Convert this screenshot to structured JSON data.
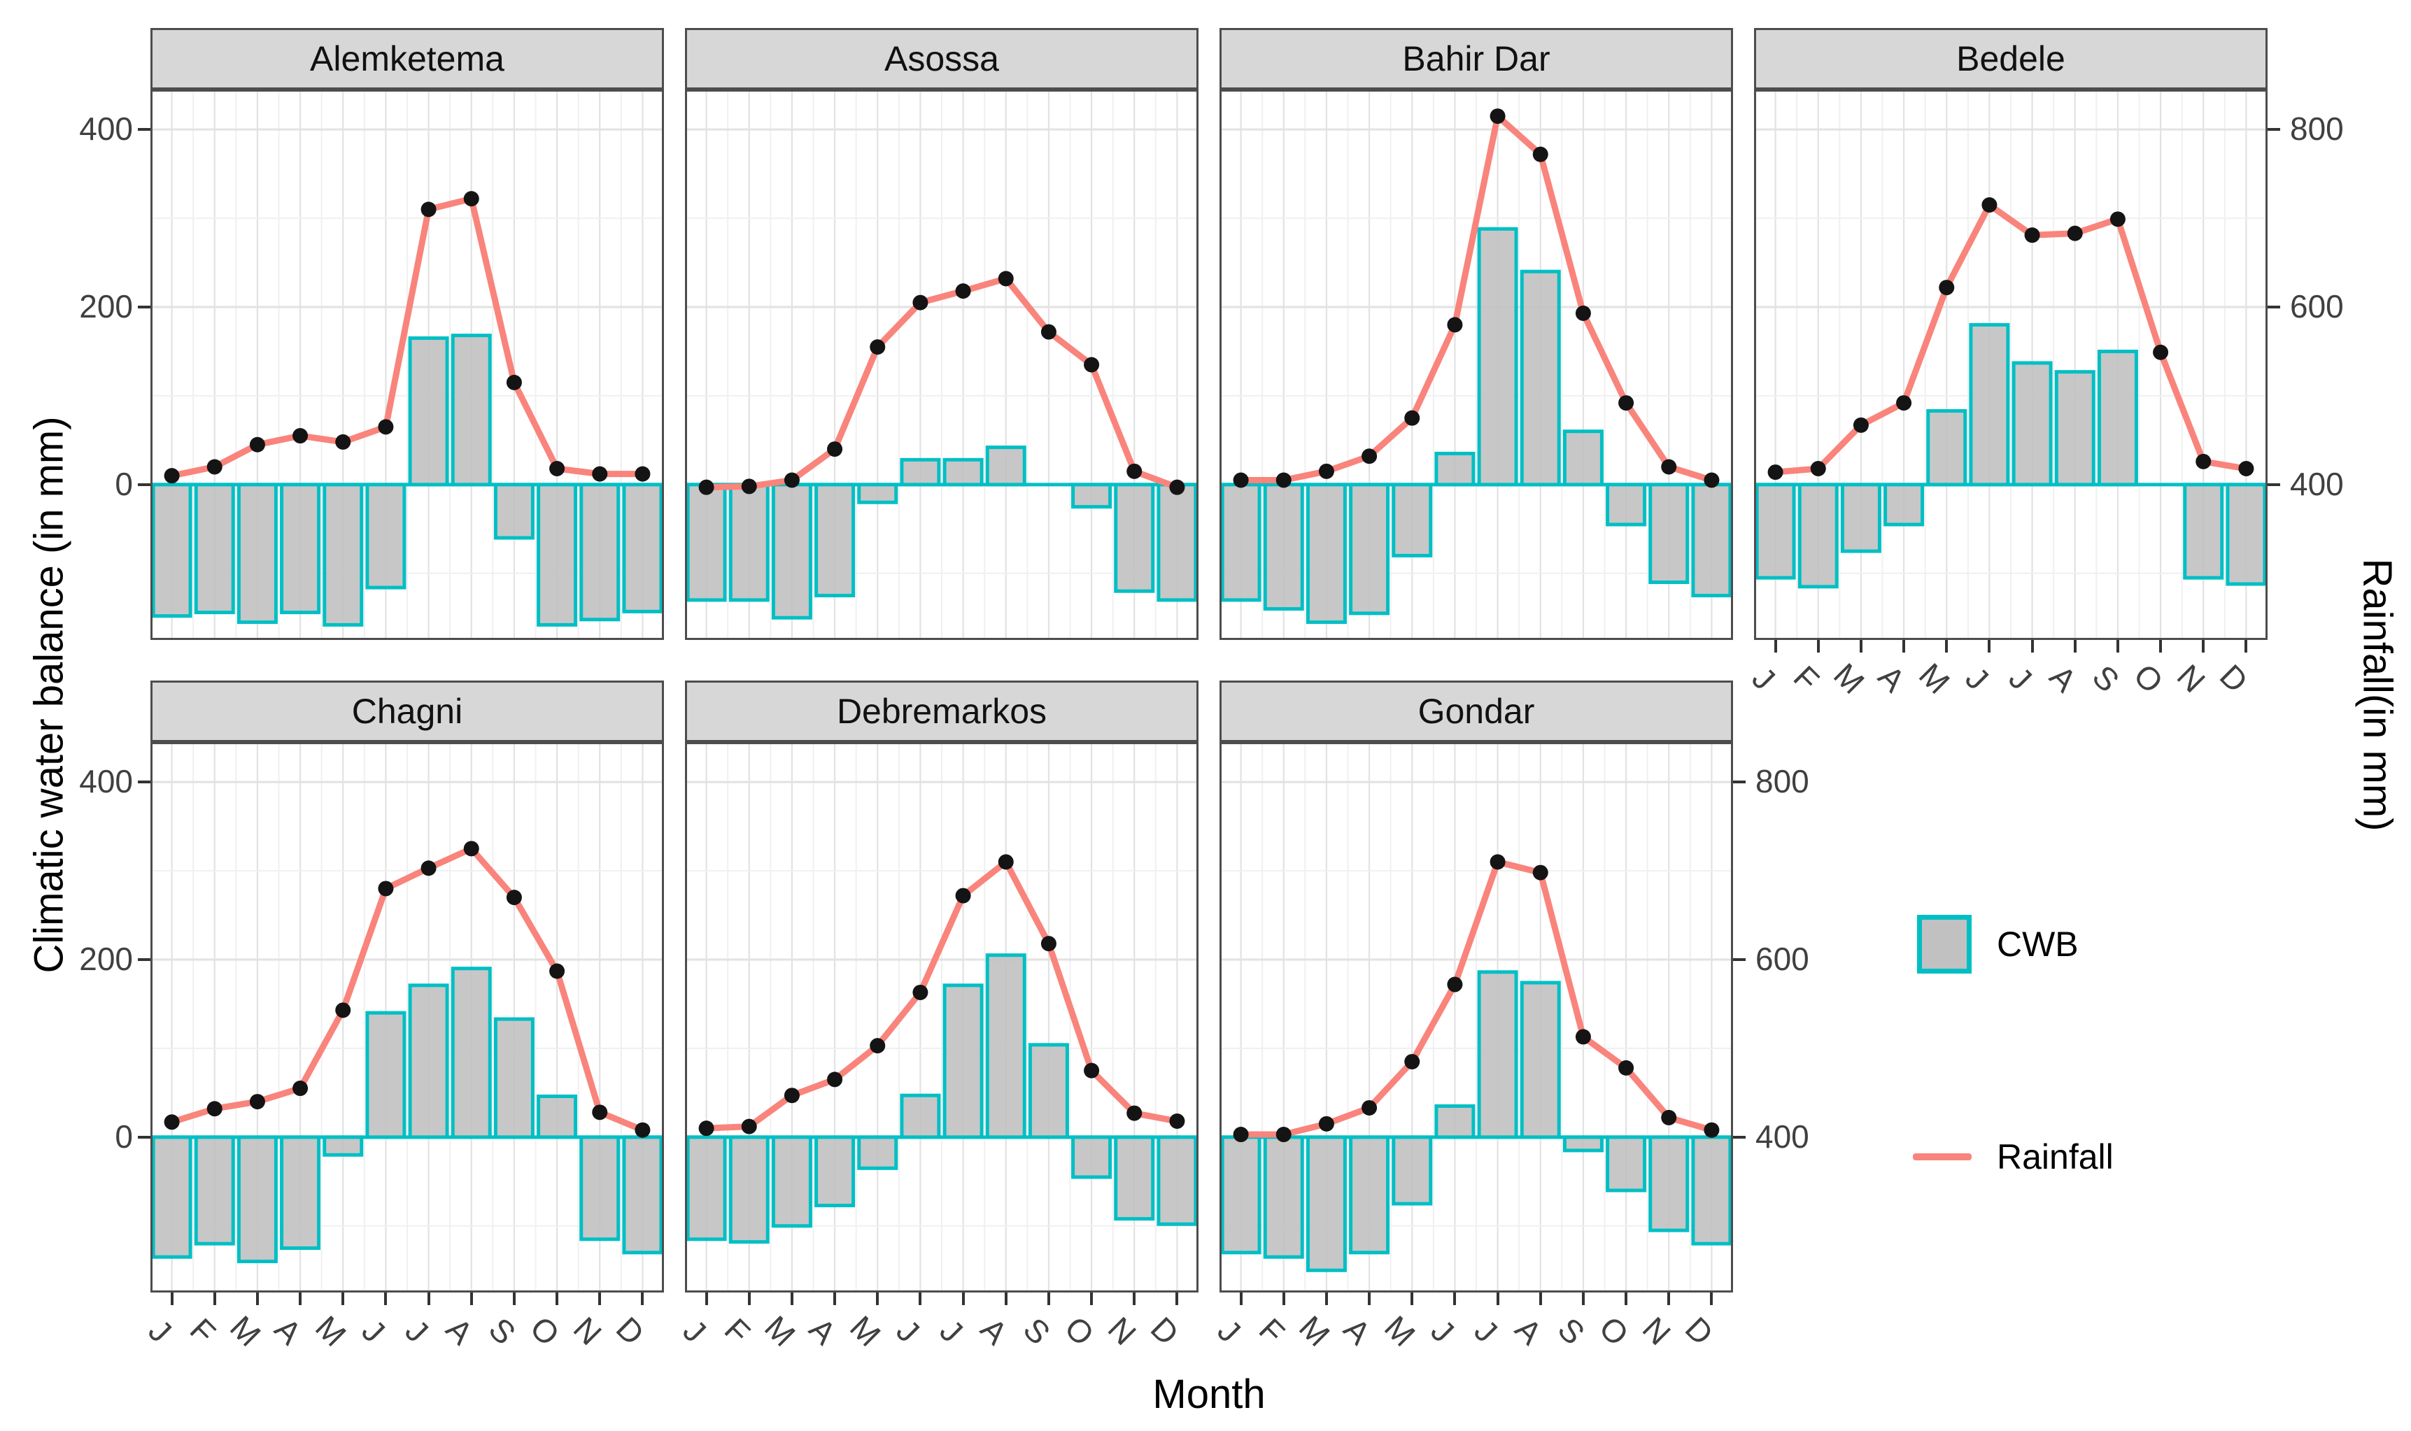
{
  "axes": {
    "left_title": "Climatic water balance (in mm)",
    "right_title": "Rainfall(in mm)",
    "x_title": "Month",
    "left_ticks": [
      "400",
      "200",
      "0"
    ],
    "left_tick_values": [
      400,
      200,
      0
    ],
    "right_ticks": [
      "800",
      "600",
      "400"
    ],
    "right_tick_values": [
      800,
      600,
      400
    ],
    "secondary_axis_mapping": "rainfall_mm = cwb_axis_value + 400"
  },
  "legend": {
    "items": [
      {
        "label": "CWB",
        "type": "box"
      },
      {
        "label": "Rainfall",
        "type": "line"
      }
    ]
  },
  "colors": {
    "bar_fill": "#C1C1C1",
    "bar_border": "#00BFC4",
    "rain_line": "#F9847C",
    "point": "#141414",
    "strip_bg": "#D7D7D7",
    "panel_border": "#4D4D4D",
    "grid_major": "#E2E2E2",
    "grid_minor": "#F0F0F0",
    "axis_text": "#404040"
  },
  "chart_data": {
    "type": "bar",
    "subtype": "faceted bar + line (dual axis)",
    "title": "",
    "xlabel": "Month",
    "ylabel_left": "Climatic water balance (in mm)",
    "ylabel_right": "Rainfall(in mm)",
    "grid": true,
    "legend_position": "right",
    "cwb_axis_ticks": [
      0,
      200,
      400
    ],
    "rainfall_axis_ticks": [
      400,
      600,
      800
    ],
    "cwb_axis_range": [
      -175,
      445
    ],
    "months": [
      "J",
      "F",
      "M",
      "A",
      "M",
      "J",
      "J",
      "A",
      "S",
      "O",
      "N",
      "D"
    ],
    "series_legend": [
      "CWB",
      "Rainfall"
    ],
    "panels": [
      {
        "name": "Alemketema",
        "row": 0,
        "col": 0,
        "cwb": [
          -148,
          -144,
          -155,
          -144,
          -158,
          -116,
          165,
          168,
          -60,
          -158,
          -152,
          -143
        ],
        "rainfall": [
          410,
          420,
          445,
          455,
          448,
          465,
          710,
          722,
          515,
          418,
          412,
          412
        ]
      },
      {
        "name": "Asossa",
        "row": 0,
        "col": 1,
        "cwb": [
          -130,
          -130,
          -150,
          -125,
          -20,
          28,
          28,
          42,
          2,
          -25,
          -120,
          -130
        ],
        "rainfall": [
          397,
          398,
          405,
          440,
          555,
          605,
          618,
          632,
          572,
          535,
          415,
          397
        ]
      },
      {
        "name": "Bahir Dar",
        "row": 0,
        "col": 2,
        "cwb": [
          -130,
          -140,
          -155,
          -145,
          -80,
          35,
          288,
          240,
          60,
          -45,
          -110,
          -125
        ],
        "rainfall": [
          405,
          405,
          415,
          432,
          475,
          580,
          815,
          772,
          593,
          492,
          420,
          405
        ]
      },
      {
        "name": "Bedele",
        "row": 0,
        "col": 3,
        "cwb": [
          -105,
          -115,
          -75,
          -45,
          83,
          180,
          137,
          127,
          150,
          0,
          -105,
          -112
        ],
        "rainfall": [
          414,
          418,
          467,
          492,
          622,
          715,
          681,
          683,
          699,
          549,
          426,
          418
        ]
      },
      {
        "name": "Chagni",
        "row": 1,
        "col": 0,
        "cwb": [
          -135,
          -120,
          -140,
          -125,
          -20,
          140,
          171,
          190,
          133,
          46,
          -115,
          -130
        ],
        "rainfall": [
          417,
          432,
          440,
          455,
          543,
          680,
          703,
          725,
          670,
          587,
          428,
          408
        ]
      },
      {
        "name": "Debremarkos",
        "row": 1,
        "col": 1,
        "cwb": [
          -115,
          -118,
          -100,
          -77,
          -35,
          47,
          171,
          205,
          104,
          -45,
          -92,
          -98
        ],
        "rainfall": [
          410,
          412,
          447,
          465,
          503,
          563,
          672,
          710,
          618,
          475,
          427,
          418
        ]
      },
      {
        "name": "Gondar",
        "row": 1,
        "col": 2,
        "cwb": [
          -130,
          -135,
          -150,
          -130,
          -75,
          35,
          186,
          174,
          -15,
          -60,
          -105,
          -120
        ],
        "rainfall": [
          403,
          403,
          415,
          433,
          485,
          572,
          710,
          698,
          513,
          478,
          422,
          408
        ]
      }
    ]
  }
}
